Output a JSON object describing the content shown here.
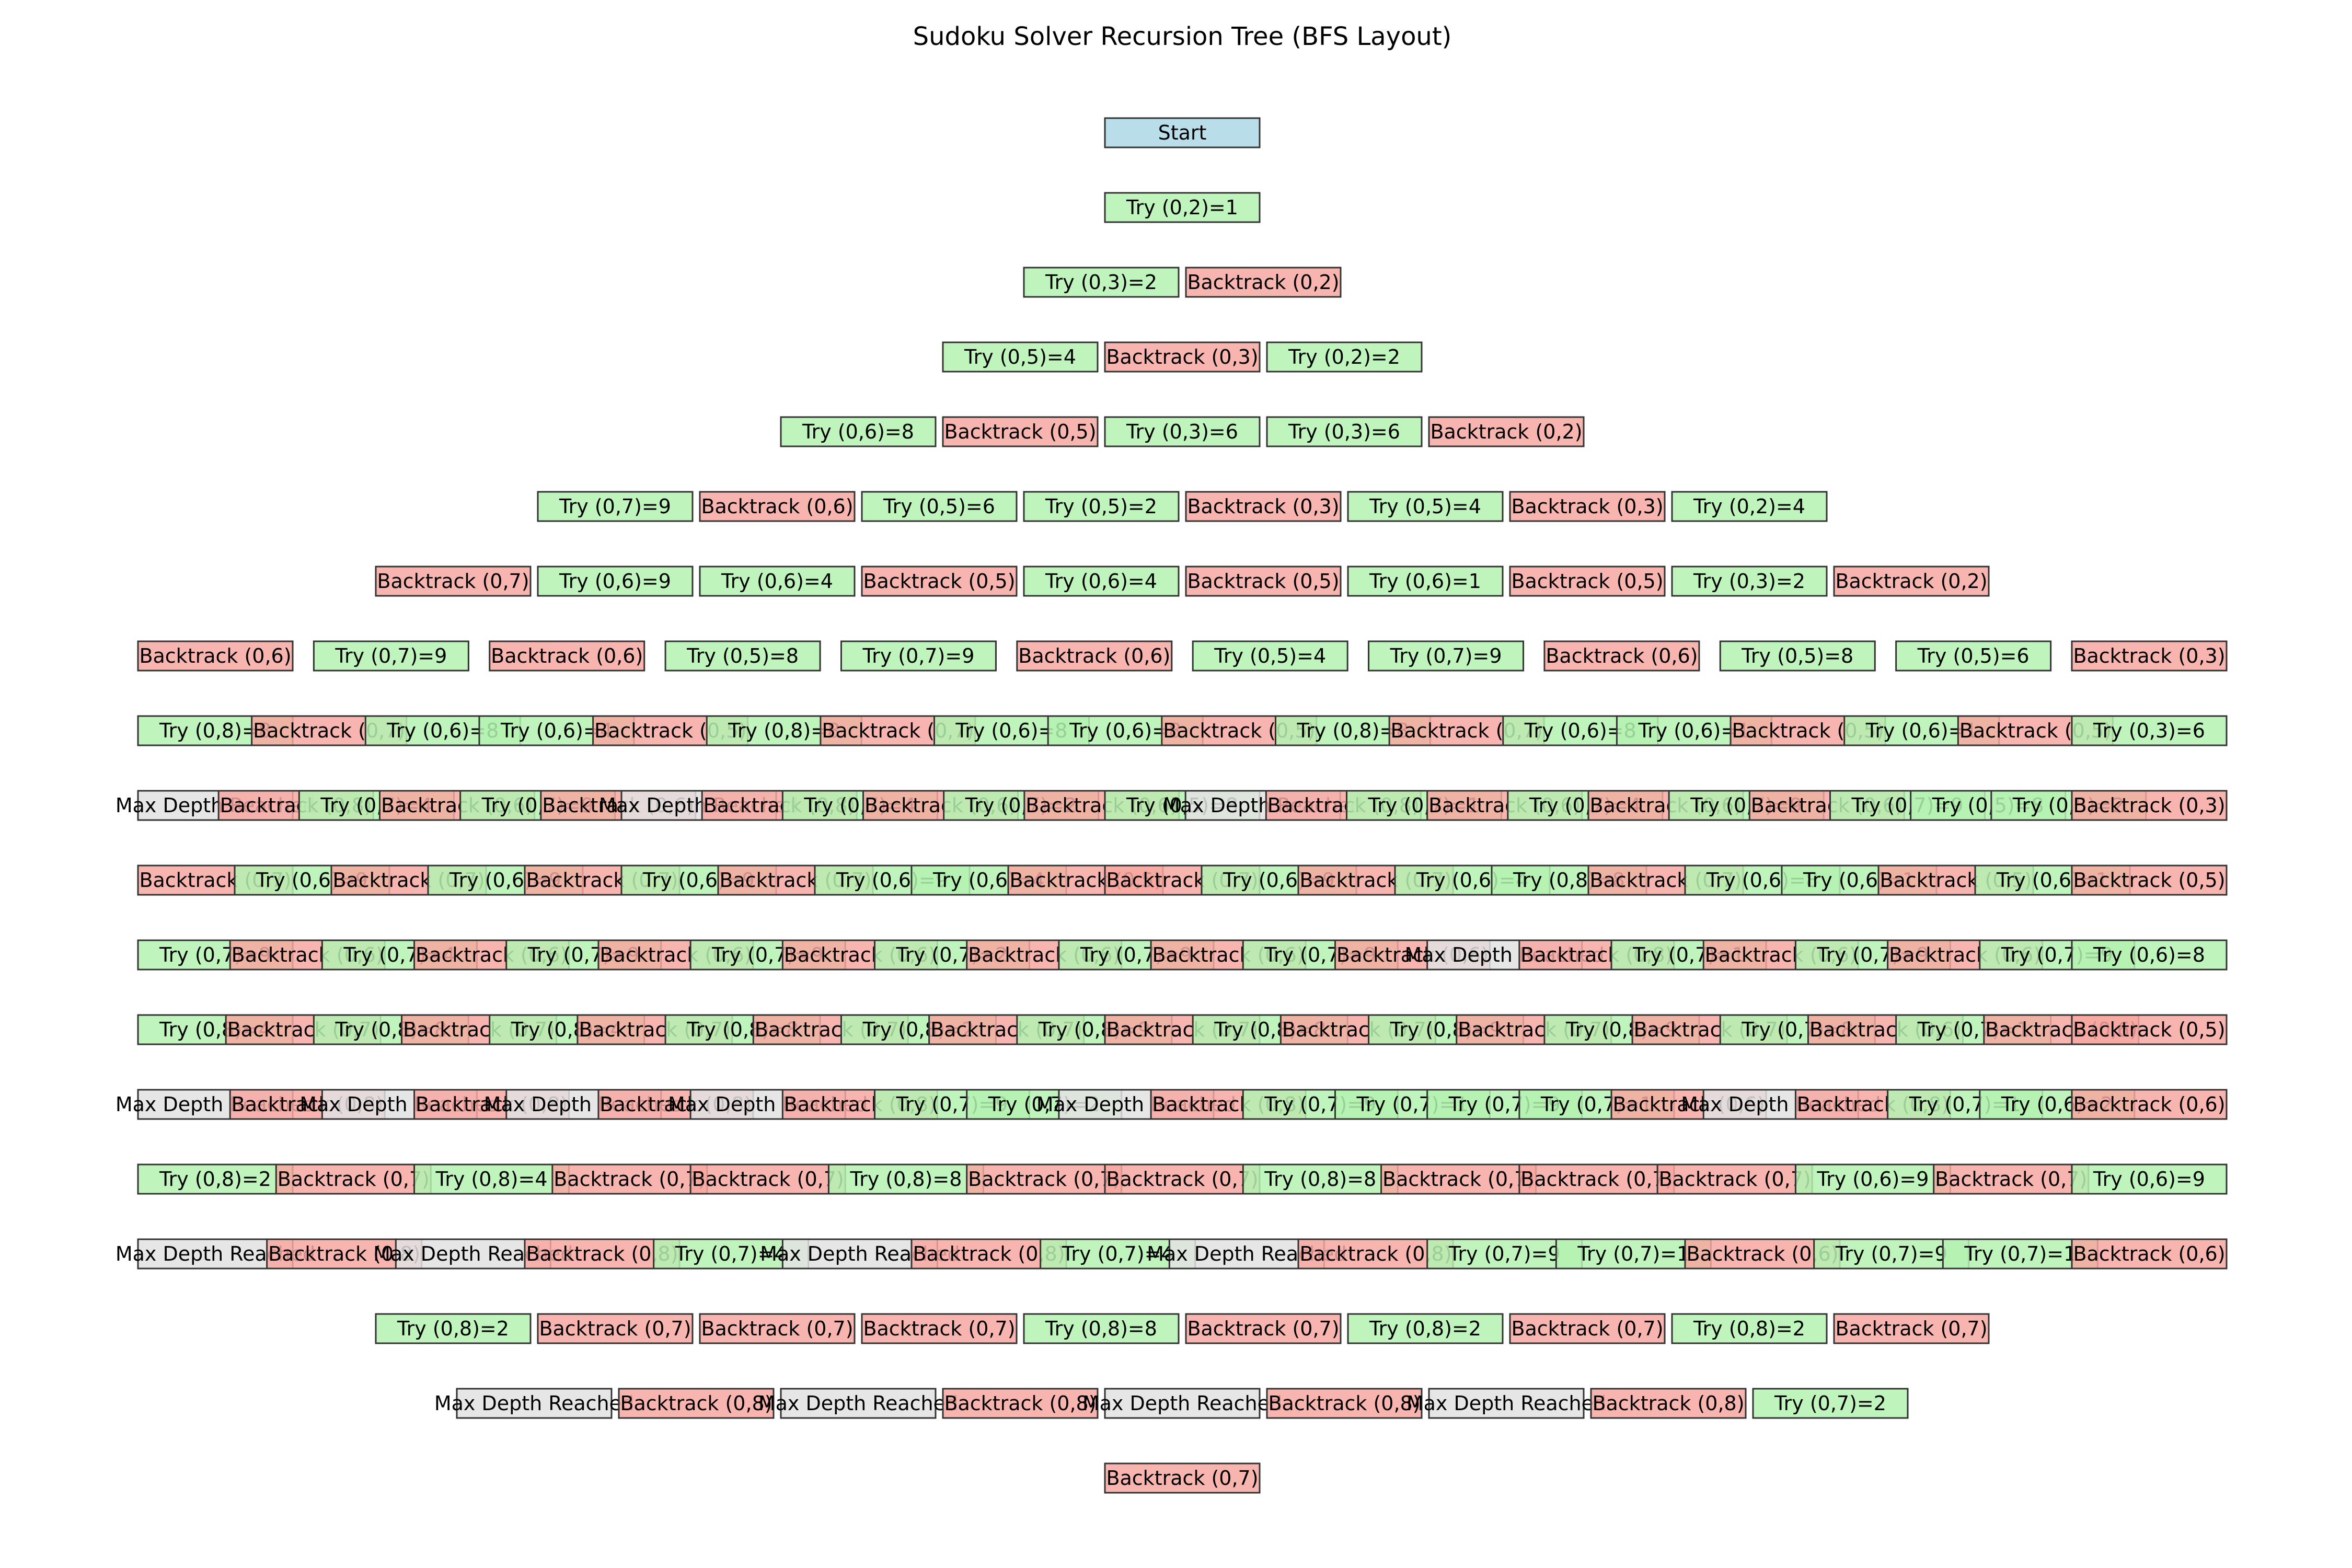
{
  "title": "Sudoku Solver Recursion Tree (BFS Layout)",
  "colors": {
    "start": "#add8e6",
    "try": "#b4f2b0",
    "backtrack": "#f7a7a0",
    "max_depth": "#e2e2e2",
    "border": "#333333"
  },
  "levels": [
    [
      {
        "label": "Start",
        "kind": "start"
      }
    ],
    [
      {
        "label": "Try (0,2)=1",
        "kind": "try"
      }
    ],
    [
      {
        "label": "Try (0,3)=2",
        "kind": "try"
      },
      {
        "label": "Backtrack (0,2)",
        "kind": "backtrack"
      }
    ],
    [
      {
        "label": "Try (0,5)=4",
        "kind": "try"
      },
      {
        "label": "Backtrack (0,3)",
        "kind": "backtrack"
      },
      {
        "label": "Try (0,2)=2",
        "kind": "try"
      }
    ],
    [
      {
        "label": "Try (0,6)=8",
        "kind": "try"
      },
      {
        "label": "Backtrack (0,5)",
        "kind": "backtrack"
      },
      {
        "label": "Try (0,3)=6",
        "kind": "try"
      },
      {
        "label": "Try (0,3)=6",
        "kind": "try"
      },
      {
        "label": "Backtrack (0,2)",
        "kind": "backtrack"
      }
    ],
    [
      {
        "label": "Try (0,7)=9",
        "kind": "try"
      },
      {
        "label": "Backtrack (0,6)",
        "kind": "backtrack"
      },
      {
        "label": "Try (0,5)=6",
        "kind": "try"
      },
      {
        "label": "Try (0,5)=2",
        "kind": "try"
      },
      {
        "label": "Backtrack (0,3)",
        "kind": "backtrack"
      },
      {
        "label": "Try (0,5)=4",
        "kind": "try"
      },
      {
        "label": "Backtrack (0,3)",
        "kind": "backtrack"
      },
      {
        "label": "Try (0,2)=4",
        "kind": "try"
      }
    ],
    [
      {
        "label": "Backtrack (0,7)",
        "kind": "backtrack"
      },
      {
        "label": "Try (0,6)=9",
        "kind": "try"
      },
      {
        "label": "Try (0,6)=4",
        "kind": "try"
      },
      {
        "label": "Backtrack (0,5)",
        "kind": "backtrack"
      },
      {
        "label": "Try (0,6)=4",
        "kind": "try"
      },
      {
        "label": "Backtrack (0,5)",
        "kind": "backtrack"
      },
      {
        "label": "Try (0,6)=1",
        "kind": "try"
      },
      {
        "label": "Backtrack (0,5)",
        "kind": "backtrack"
      },
      {
        "label": "Try (0,3)=2",
        "kind": "try"
      },
      {
        "label": "Backtrack (0,2)",
        "kind": "backtrack"
      }
    ],
    [
      {
        "label": "Backtrack (0,6)",
        "kind": "backtrack"
      },
      {
        "label": "Try (0,7)=9",
        "kind": "try"
      },
      {
        "label": "Backtrack (0,6)",
        "kind": "backtrack"
      },
      {
        "label": "Try (0,5)=8",
        "kind": "try"
      },
      {
        "label": "Try (0,7)=9",
        "kind": "try"
      },
      {
        "label": "Backtrack (0,6)",
        "kind": "backtrack"
      },
      {
        "label": "Try (0,5)=4",
        "kind": "try"
      },
      {
        "label": "Try (0,7)=9",
        "kind": "try"
      },
      {
        "label": "Backtrack (0,6)",
        "kind": "backtrack"
      },
      {
        "label": "Try (0,5)=8",
        "kind": "try"
      },
      {
        "label": "Try (0,5)=6",
        "kind": "try"
      },
      {
        "label": "Backtrack (0,3)",
        "kind": "backtrack"
      }
    ],
    [
      {
        "label": "Try (0,8)=8",
        "kind": "try"
      },
      {
        "label": "Backtrack (0,7)",
        "kind": "backtrack"
      },
      {
        "label": "Try (0,6)=8",
        "kind": "try"
      },
      {
        "label": "Try (0,6)=4",
        "kind": "try"
      },
      {
        "label": "Backtrack (0,5)",
        "kind": "backtrack"
      },
      {
        "label": "Try (0,8)=8",
        "kind": "try"
      },
      {
        "label": "Backtrack (0,7)",
        "kind": "backtrack"
      },
      {
        "label": "Try (0,6)=8",
        "kind": "try"
      },
      {
        "label": "Try (0,6)=8",
        "kind": "try"
      },
      {
        "label": "Backtrack (0,5)",
        "kind": "backtrack"
      },
      {
        "label": "Try (0,8)=8",
        "kind": "try"
      },
      {
        "label": "Backtrack (0,7)",
        "kind": "backtrack"
      },
      {
        "label": "Try (0,6)=8",
        "kind": "try"
      },
      {
        "label": "Try (0,6)=1",
        "kind": "try"
      },
      {
        "label": "Backtrack (0,5)",
        "kind": "backtrack"
      },
      {
        "label": "Try (0,6)=1",
        "kind": "try"
      },
      {
        "label": "Backtrack (0,5)",
        "kind": "backtrack"
      },
      {
        "label": "Try (0,3)=6",
        "kind": "try"
      }
    ],
    [
      {
        "label": "Max Depth Reached",
        "kind": "max"
      },
      {
        "label": "Backtrack (0,8)",
        "kind": "backtrack"
      },
      {
        "label": "Try (0,7)=4",
        "kind": "try"
      },
      {
        "label": "Backtrack (0,6)",
        "kind": "backtrack"
      },
      {
        "label": "Try (0,7)=9",
        "kind": "try"
      },
      {
        "label": "Backtrack (0,6)",
        "kind": "backtrack"
      },
      {
        "label": "Max Depth Reached",
        "kind": "max"
      },
      {
        "label": "Backtrack (0,8)",
        "kind": "backtrack"
      },
      {
        "label": "Try (0,7)=4",
        "kind": "try"
      },
      {
        "label": "Backtrack (0,6)",
        "kind": "backtrack"
      },
      {
        "label": "Try (0,7)=2",
        "kind": "try"
      },
      {
        "label": "Backtrack (0,6)",
        "kind": "backtrack"
      },
      {
        "label": "Try (0,5)=8",
        "kind": "try"
      },
      {
        "label": "Max Depth Reached",
        "kind": "max"
      },
      {
        "label": "Backtrack (0,8)",
        "kind": "backtrack"
      },
      {
        "label": "Try (0,7)=1",
        "kind": "try"
      },
      {
        "label": "Backtrack (0,6)",
        "kind": "backtrack"
      },
      {
        "label": "Try (0,7)=4",
        "kind": "try"
      },
      {
        "label": "Backtrack (0,6)",
        "kind": "backtrack"
      },
      {
        "label": "Try (0,7)=9",
        "kind": "try"
      },
      {
        "label": "Backtrack (0,6)",
        "kind": "backtrack"
      },
      {
        "label": "Try (0,7)=9",
        "kind": "try"
      },
      {
        "label": "Try (0,5)=8",
        "kind": "try"
      },
      {
        "label": "Try (0,5)=2",
        "kind": "try"
      },
      {
        "label": "Backtrack (0,3)",
        "kind": "backtrack"
      }
    ],
    [
      {
        "label": "Backtrack (0,7)",
        "kind": "backtrack"
      },
      {
        "label": "Try (0,6)=9",
        "kind": "try"
      },
      {
        "label": "Backtrack (0,7)",
        "kind": "backtrack"
      },
      {
        "label": "Try (0,6)=9",
        "kind": "try"
      },
      {
        "label": "Backtrack (0,7)",
        "kind": "backtrack"
      },
      {
        "label": "Try (0,6)=9",
        "kind": "try"
      },
      {
        "label": "Backtrack (0,7)",
        "kind": "backtrack"
      },
      {
        "label": "Try (0,6)=9",
        "kind": "try"
      },
      {
        "label": "Try (0,6)=4",
        "kind": "try"
      },
      {
        "label": "Backtrack (0,5)",
        "kind": "backtrack"
      },
      {
        "label": "Backtrack (0,7)",
        "kind": "backtrack"
      },
      {
        "label": "Try (0,6)=9",
        "kind": "try"
      },
      {
        "label": "Backtrack (0,7)",
        "kind": "backtrack"
      },
      {
        "label": "Try (0,6)=4",
        "kind": "try"
      },
      {
        "label": "Try (0,8)=8",
        "kind": "try"
      },
      {
        "label": "Backtrack (0,7)",
        "kind": "backtrack"
      },
      {
        "label": "Try (0,6)=8",
        "kind": "try"
      },
      {
        "label": "Try (0,6)=1",
        "kind": "try"
      },
      {
        "label": "Backtrack (0,5)",
        "kind": "backtrack"
      },
      {
        "label": "Try (0,6)=1",
        "kind": "try"
      },
      {
        "label": "Backtrack (0,5)",
        "kind": "backtrack"
      }
    ],
    [
      {
        "label": "Try (0,7)=9",
        "kind": "try"
      },
      {
        "label": "Backtrack (0,6)",
        "kind": "backtrack"
      },
      {
        "label": "Try (0,7)=4",
        "kind": "try"
      },
      {
        "label": "Backtrack (0,6)",
        "kind": "backtrack"
      },
      {
        "label": "Try (0,7)=9",
        "kind": "try"
      },
      {
        "label": "Backtrack (0,6)",
        "kind": "backtrack"
      },
      {
        "label": "Try (0,7)=9",
        "kind": "try"
      },
      {
        "label": "Backtrack (0,6)",
        "kind": "backtrack"
      },
      {
        "label": "Try (0,7)=2",
        "kind": "try"
      },
      {
        "label": "Backtrack (0,6)",
        "kind": "backtrack"
      },
      {
        "label": "Try (0,7)=9",
        "kind": "try"
      },
      {
        "label": "Backtrack (0,6)",
        "kind": "backtrack"
      },
      {
        "label": "Try (0,7)=9",
        "kind": "try"
      },
      {
        "label": "Backtrack (0,6)",
        "kind": "backtrack"
      },
      {
        "label": "Max Depth Reached",
        "kind": "max"
      },
      {
        "label": "Backtrack (0,8)",
        "kind": "backtrack"
      },
      {
        "label": "Try (0,7)=1",
        "kind": "try"
      },
      {
        "label": "Backtrack (0,6)",
        "kind": "backtrack"
      },
      {
        "label": "Try (0,7)=9",
        "kind": "try"
      },
      {
        "label": "Backtrack (0,6)",
        "kind": "backtrack"
      },
      {
        "label": "Try (0,7)=9",
        "kind": "try"
      },
      {
        "label": "Try (0,6)=8",
        "kind": "try"
      }
    ],
    [
      {
        "label": "Try (0,8)=4",
        "kind": "try"
      },
      {
        "label": "Backtrack (0,7)",
        "kind": "backtrack"
      },
      {
        "label": "Try (0,8)=8",
        "kind": "try"
      },
      {
        "label": "Backtrack (0,7)",
        "kind": "backtrack"
      },
      {
        "label": "Try (0,8)=4",
        "kind": "try"
      },
      {
        "label": "Backtrack (0,7)",
        "kind": "backtrack"
      },
      {
        "label": "Try (0,8)=8",
        "kind": "try"
      },
      {
        "label": "Backtrack (0,7)",
        "kind": "backtrack"
      },
      {
        "label": "Try (0,8)=2",
        "kind": "try"
      },
      {
        "label": "Backtrack (0,7)",
        "kind": "backtrack"
      },
      {
        "label": "Try (0,8)=9",
        "kind": "try"
      },
      {
        "label": "Backtrack (0,7)",
        "kind": "backtrack"
      },
      {
        "label": "Try (0,8)=8",
        "kind": "try"
      },
      {
        "label": "Backtrack (0,7)",
        "kind": "backtrack"
      },
      {
        "label": "Try (0,8)=9",
        "kind": "try"
      },
      {
        "label": "Backtrack (0,7)",
        "kind": "backtrack"
      },
      {
        "label": "Try (0,8)=9",
        "kind": "try"
      },
      {
        "label": "Backtrack (0,7)",
        "kind": "backtrack"
      },
      {
        "label": "Try (0,7)=8",
        "kind": "try"
      },
      {
        "label": "Backtrack (0,6)",
        "kind": "backtrack"
      },
      {
        "label": "Try (0,7)=1",
        "kind": "try"
      },
      {
        "label": "Backtrack (0,6)",
        "kind": "backtrack"
      },
      {
        "label": "Backtrack (0,5)",
        "kind": "backtrack"
      }
    ],
    [
      {
        "label": "Max Depth Reached",
        "kind": "max"
      },
      {
        "label": "Backtrack (0,8)",
        "kind": "backtrack"
      },
      {
        "label": "Max Depth Reached",
        "kind": "max"
      },
      {
        "label": "Backtrack (0,8)",
        "kind": "backtrack"
      },
      {
        "label": "Max Depth Reached",
        "kind": "max"
      },
      {
        "label": "Backtrack (0,8)",
        "kind": "backtrack"
      },
      {
        "label": "Max Depth Reached",
        "kind": "max"
      },
      {
        "label": "Backtrack (0,8)",
        "kind": "backtrack"
      },
      {
        "label": "Try (0,7)=9",
        "kind": "try"
      },
      {
        "label": "Try (0,7)=2",
        "kind": "try"
      },
      {
        "label": "Max Depth Reached",
        "kind": "max"
      },
      {
        "label": "Backtrack (0,8)",
        "kind": "backtrack"
      },
      {
        "label": "Try (0,7)=9",
        "kind": "try"
      },
      {
        "label": "Try (0,7)=1",
        "kind": "try"
      },
      {
        "label": "Try (0,7)=9",
        "kind": "try"
      },
      {
        "label": "Try (0,7)=1",
        "kind": "try"
      },
      {
        "label": "Backtrack (0,6)",
        "kind": "backtrack"
      },
      {
        "label": "Max Depth Reached",
        "kind": "max"
      },
      {
        "label": "Backtrack (0,8)",
        "kind": "backtrack"
      },
      {
        "label": "Try (0,7)=1",
        "kind": "try"
      },
      {
        "label": "Try (0,6)=2",
        "kind": "try"
      },
      {
        "label": "Backtrack (0,6)",
        "kind": "backtrack"
      }
    ],
    [
      {
        "label": "Try (0,8)=2",
        "kind": "try"
      },
      {
        "label": "Backtrack (0,7)",
        "kind": "backtrack"
      },
      {
        "label": "Try (0,8)=4",
        "kind": "try"
      },
      {
        "label": "Backtrack (0,7)",
        "kind": "backtrack"
      },
      {
        "label": "Backtrack (0,7)",
        "kind": "backtrack"
      },
      {
        "label": "Try (0,8)=8",
        "kind": "try"
      },
      {
        "label": "Backtrack (0,7)",
        "kind": "backtrack"
      },
      {
        "label": "Backtrack (0,7)",
        "kind": "backtrack"
      },
      {
        "label": "Try (0,8)=8",
        "kind": "try"
      },
      {
        "label": "Backtrack (0,7)",
        "kind": "backtrack"
      },
      {
        "label": "Backtrack (0,7)",
        "kind": "backtrack"
      },
      {
        "label": "Backtrack (0,7)",
        "kind": "backtrack"
      },
      {
        "label": "Try (0,6)=9",
        "kind": "try"
      },
      {
        "label": "Backtrack (0,7)",
        "kind": "backtrack"
      },
      {
        "label": "Try (0,6)=9",
        "kind": "try"
      }
    ],
    [
      {
        "label": "Max Depth Reached",
        "kind": "max"
      },
      {
        "label": "Backtrack (0,8)",
        "kind": "backtrack"
      },
      {
        "label": "Max Depth Reached",
        "kind": "max"
      },
      {
        "label": "Backtrack (0,8)",
        "kind": "backtrack"
      },
      {
        "label": "Try (0,7)=4",
        "kind": "try"
      },
      {
        "label": "Max Depth Reached",
        "kind": "max"
      },
      {
        "label": "Backtrack (0,8)",
        "kind": "backtrack"
      },
      {
        "label": "Try (0,7)=4",
        "kind": "try"
      },
      {
        "label": "Max Depth Reached",
        "kind": "max"
      },
      {
        "label": "Backtrack (0,8)",
        "kind": "backtrack"
      },
      {
        "label": "Try (0,7)=9",
        "kind": "try"
      },
      {
        "label": "Try (0,7)=1",
        "kind": "try"
      },
      {
        "label": "Backtrack (0,6)",
        "kind": "backtrack"
      },
      {
        "label": "Try (0,7)=9",
        "kind": "try"
      },
      {
        "label": "Try (0,7)=1",
        "kind": "try"
      },
      {
        "label": "Backtrack (0,6)",
        "kind": "backtrack"
      }
    ],
    [
      {
        "label": "Try (0,8)=2",
        "kind": "try"
      },
      {
        "label": "Backtrack (0,7)",
        "kind": "backtrack"
      },
      {
        "label": "Backtrack (0,7)",
        "kind": "backtrack"
      },
      {
        "label": "Backtrack (0,7)",
        "kind": "backtrack"
      },
      {
        "label": "Try (0,8)=8",
        "kind": "try"
      },
      {
        "label": "Backtrack (0,7)",
        "kind": "backtrack"
      },
      {
        "label": "Try (0,8)=2",
        "kind": "try"
      },
      {
        "label": "Backtrack (0,7)",
        "kind": "backtrack"
      },
      {
        "label": "Try (0,8)=2",
        "kind": "try"
      },
      {
        "label": "Backtrack (0,7)",
        "kind": "backtrack"
      }
    ],
    [
      {
        "label": "Max Depth Reached",
        "kind": "max"
      },
      {
        "label": "Backtrack (0,8)",
        "kind": "backtrack"
      },
      {
        "label": "Max Depth Reached",
        "kind": "max"
      },
      {
        "label": "Backtrack (0,8)",
        "kind": "backtrack"
      },
      {
        "label": "Max Depth Reached",
        "kind": "max"
      },
      {
        "label": "Backtrack (0,8)",
        "kind": "backtrack"
      },
      {
        "label": "Max Depth Reached",
        "kind": "max"
      },
      {
        "label": "Backtrack (0,8)",
        "kind": "backtrack"
      },
      {
        "label": "Try (0,7)=2",
        "kind": "try"
      }
    ],
    [
      {
        "label": "Backtrack (0,7)",
        "kind": "backtrack"
      }
    ]
  ]
}
